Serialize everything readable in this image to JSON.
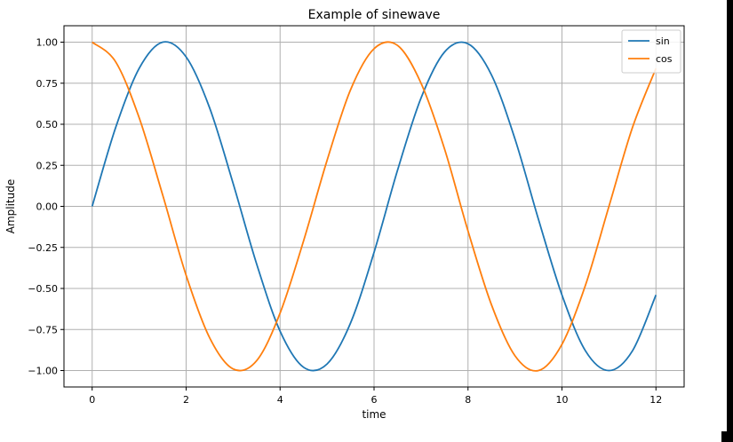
{
  "chart_data": {
    "type": "line",
    "title": "Example of sinewave",
    "xlabel": "time",
    "ylabel": "Amplitude",
    "xlim": [
      -0.6,
      12.6
    ],
    "ylim": [
      -1.1,
      1.1
    ],
    "xticks": [
      0,
      2,
      4,
      6,
      8,
      10,
      12
    ],
    "xtick_labels": [
      "0",
      "2",
      "4",
      "6",
      "8",
      "10",
      "12"
    ],
    "yticks": [
      1.0,
      0.75,
      0.5,
      0.25,
      0.0,
      -0.25,
      -0.5,
      -0.75,
      -1.0
    ],
    "ytick_labels": [
      "1.00",
      "0.75",
      "0.50",
      "0.25",
      "0.00",
      "−0.25",
      "−0.50",
      "−0.75",
      "−1.00"
    ],
    "grid": true,
    "legend_position": "top-right",
    "x": [
      0,
      0.5,
      1,
      1.5,
      2,
      2.5,
      3,
      3.5,
      4,
      4.5,
      5,
      5.5,
      6,
      6.5,
      7,
      7.5,
      8,
      8.5,
      9,
      9.5,
      10,
      10.5,
      11,
      11.5,
      12
    ],
    "series": [
      {
        "name": "sin",
        "color": "#1f77b4",
        "values": [
          0.0,
          0.48,
          0.84,
          1.0,
          0.91,
          0.6,
          0.14,
          -0.35,
          -0.76,
          -0.98,
          -0.96,
          -0.71,
          -0.28,
          0.22,
          0.66,
          0.94,
          0.99,
          0.8,
          0.41,
          -0.08,
          -0.54,
          -0.88,
          -1.0,
          -0.88,
          -0.54
        ]
      },
      {
        "name": "cos",
        "color": "#ff7f0e",
        "values": [
          1.0,
          0.88,
          0.54,
          0.07,
          -0.42,
          -0.8,
          -0.99,
          -0.94,
          -0.65,
          -0.21,
          0.28,
          0.71,
          0.96,
          0.98,
          0.75,
          0.35,
          -0.15,
          -0.6,
          -0.91,
          -1.0,
          -0.84,
          -0.48,
          0.0,
          0.48,
          0.84
        ]
      }
    ]
  }
}
